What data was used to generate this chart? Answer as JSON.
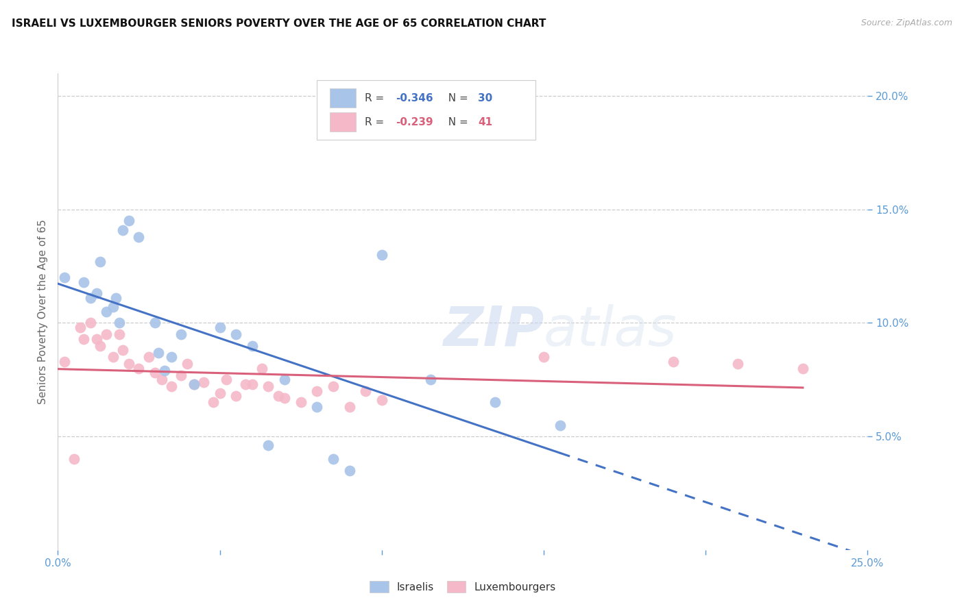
{
  "title": "ISRAELI VS LUXEMBOURGER SENIORS POVERTY OVER THE AGE OF 65 CORRELATION CHART",
  "source": "Source: ZipAtlas.com",
  "ylabel": "Seniors Poverty Over the Age of 65",
  "xlim": [
    0.0,
    0.25
  ],
  "ylim": [
    0.0,
    0.21
  ],
  "xticks": [
    0.0,
    0.05,
    0.1,
    0.15,
    0.2,
    0.25
  ],
  "xticklabels": [
    "0.0%",
    "",
    "",
    "",
    "",
    "25.0%"
  ],
  "yticks": [
    0.05,
    0.1,
    0.15,
    0.2
  ],
  "yticklabels": [
    "5.0%",
    "10.0%",
    "15.0%",
    "20.0%"
  ],
  "grid_color": "#cccccc",
  "background_color": "#ffffff",
  "watermark_zip": "ZIP",
  "watermark_atlas": "atlas",
  "legend_R_israeli": "-0.346",
  "legend_N_israeli": "30",
  "legend_R_luxembourger": "-0.239",
  "legend_N_luxembourger": "41",
  "israeli_color": "#a8c4e8",
  "luxembourger_color": "#f5b8c8",
  "israeli_line_color": "#4472c4",
  "luxembourger_line_color": "#d9607a",
  "tick_color": "#5b9bd5",
  "israeli_x": [
    0.002,
    0.008,
    0.01,
    0.012,
    0.013,
    0.015,
    0.017,
    0.018,
    0.019,
    0.02,
    0.022,
    0.025,
    0.03,
    0.031,
    0.033,
    0.035,
    0.038,
    0.042,
    0.05,
    0.055,
    0.06,
    0.065,
    0.07,
    0.08,
    0.085,
    0.09,
    0.1,
    0.115,
    0.135,
    0.155
  ],
  "israeli_y": [
    0.12,
    0.118,
    0.111,
    0.113,
    0.127,
    0.105,
    0.107,
    0.111,
    0.1,
    0.141,
    0.145,
    0.138,
    0.1,
    0.087,
    0.079,
    0.085,
    0.095,
    0.073,
    0.098,
    0.095,
    0.09,
    0.046,
    0.075,
    0.063,
    0.04,
    0.035,
    0.13,
    0.075,
    0.065,
    0.055
  ],
  "luxembourger_x": [
    0.002,
    0.005,
    0.007,
    0.008,
    0.01,
    0.012,
    0.013,
    0.015,
    0.017,
    0.019,
    0.02,
    0.022,
    0.025,
    0.028,
    0.03,
    0.032,
    0.035,
    0.038,
    0.04,
    0.042,
    0.045,
    0.048,
    0.05,
    0.052,
    0.055,
    0.058,
    0.06,
    0.063,
    0.065,
    0.068,
    0.07,
    0.075,
    0.08,
    0.085,
    0.09,
    0.095,
    0.1,
    0.15,
    0.19,
    0.21,
    0.23
  ],
  "luxembourger_y": [
    0.083,
    0.04,
    0.098,
    0.093,
    0.1,
    0.093,
    0.09,
    0.095,
    0.085,
    0.095,
    0.088,
    0.082,
    0.08,
    0.085,
    0.078,
    0.075,
    0.072,
    0.077,
    0.082,
    0.073,
    0.074,
    0.065,
    0.069,
    0.075,
    0.068,
    0.073,
    0.073,
    0.08,
    0.072,
    0.068,
    0.067,
    0.065,
    0.07,
    0.072,
    0.063,
    0.07,
    0.066,
    0.085,
    0.083,
    0.082,
    0.08
  ]
}
